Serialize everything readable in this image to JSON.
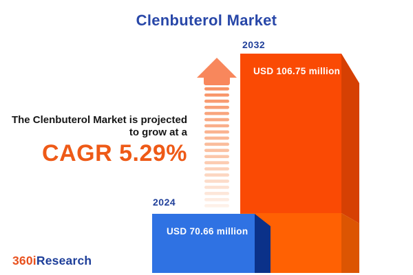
{
  "title": "Clenbuterol Market",
  "projection": {
    "line1": "The Clenbuterol Market is projected",
    "line2": "to grow at a",
    "cagr": "CAGR 5.29%"
  },
  "bars": [
    {
      "year": "2024",
      "value": 70.66,
      "value_label": "USD 70.66 million",
      "front_color": "#2F72E3",
      "side_color": "#0B3189"
    },
    {
      "year": "2032",
      "value": 106.75,
      "value_label": "USD 106.75 million",
      "front_color": "#FA4A04",
      "side_color": "#D64003",
      "lower_front_color": "#FF6103",
      "lower_side_color": "#DC5502"
    }
  ],
  "logo": {
    "part1": "360i",
    "part2": "Research",
    "part1_color": "#E8511E",
    "part2_color": "#1D3E99"
  },
  "icons": {
    "growth_arrow": "striped-up-arrow"
  },
  "colors": {
    "title_blue": "#2847A8",
    "year_blue": "#21409A",
    "cagr_orange": "#EE5A17",
    "arrow_head": "#F8875C",
    "background": "#FFFFFF"
  },
  "chart_data": {
    "type": "bar",
    "categories": [
      "2024",
      "2032"
    ],
    "values": [
      70.66,
      106.75
    ],
    "unit": "USD million",
    "title": "Clenbuterol Market",
    "data_labels": [
      "USD 70.66 million",
      "USD 106.75 million"
    ],
    "annotations": [
      "The Clenbuterol Market is projected to grow at a",
      "CAGR 5.29%"
    ],
    "cagr_percent": 5.29,
    "style": "3d-infographic",
    "axes": "none",
    "grid": false,
    "legend": "none"
  }
}
